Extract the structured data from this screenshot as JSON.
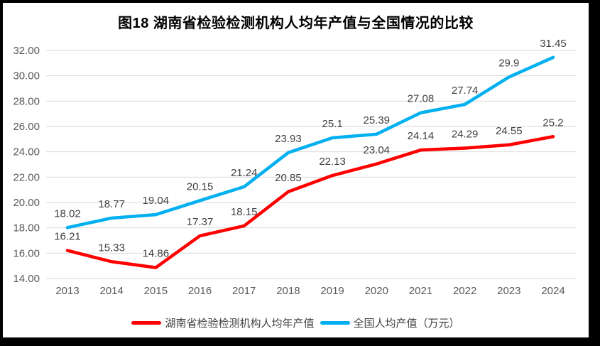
{
  "chart_data": {
    "type": "line",
    "title": "图18 湖南省检验检测机构人均年产值与全国情况的比较",
    "categories": [
      "2013",
      "2014",
      "2015",
      "2016",
      "2017",
      "2018",
      "2019",
      "2020",
      "2021",
      "2022",
      "2023",
      "2024"
    ],
    "series": [
      {
        "key": "hunan",
        "name": "湖南省检验检测机构人均年产值",
        "color": "#FF0000",
        "values": [
          16.21,
          15.33,
          14.86,
          17.37,
          18.15,
          20.85,
          22.13,
          23.04,
          24.14,
          24.29,
          24.55,
          25.2
        ]
      },
      {
        "key": "national",
        "name": "全国人均产值（万元）",
        "color": "#00B0F0",
        "values": [
          18.02,
          18.77,
          19.04,
          20.15,
          21.24,
          23.93,
          25.1,
          25.39,
          27.08,
          27.74,
          29.9,
          31.45
        ]
      }
    ],
    "ylim": [
      14,
      32
    ],
    "ytick_step": 2,
    "grid": true,
    "legend_position": "bottom",
    "gridline_color": "#D9D9D9",
    "axis_label_color": "#595959",
    "data_label_color": "#404040",
    "frame_color": "#000000"
  }
}
